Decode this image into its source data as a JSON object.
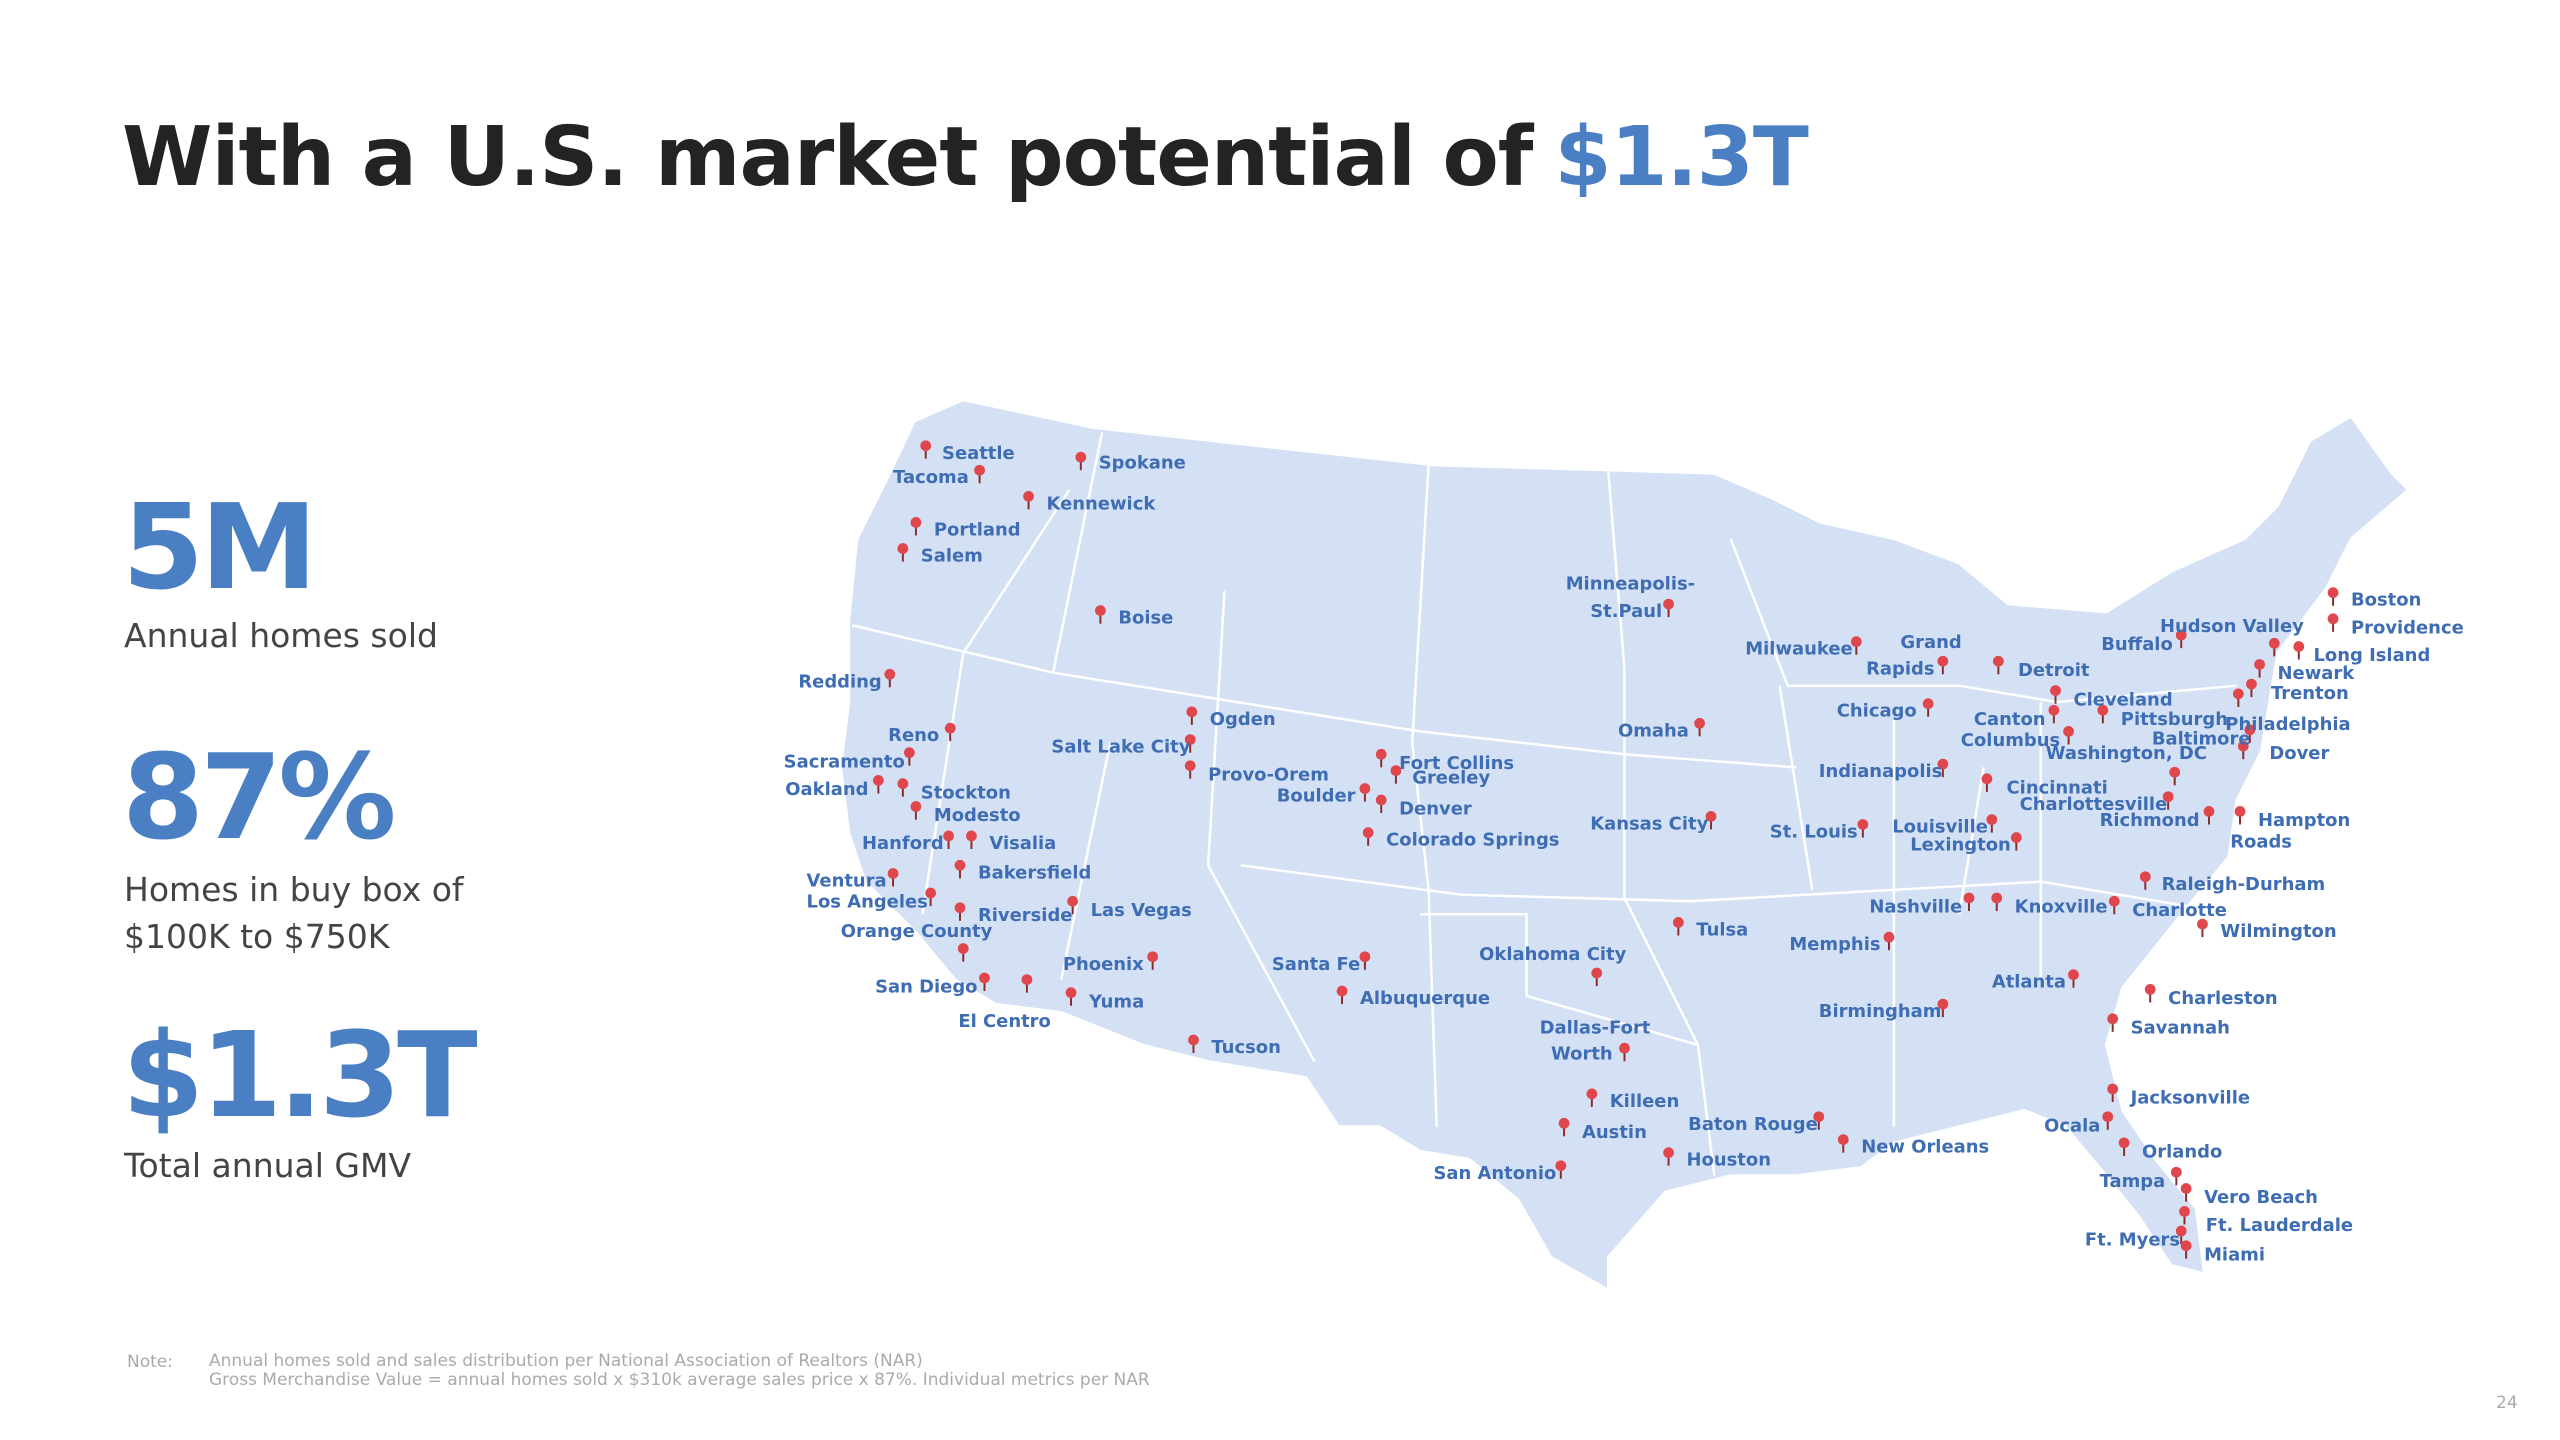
{
  "header": {
    "title": "With a U.S. market potential of",
    "title_highlight": "$1.3T"
  },
  "stats": [
    {
      "value": "5M",
      "label": "Annual homes sold"
    },
    {
      "value": "87%",
      "label": "Homes in buy box of $100K to $750K"
    },
    {
      "value": "$1.3T",
      "label": "Total annual GMV"
    }
  ],
  "map": {
    "cities": [
      "Seattle",
      "Tacoma",
      "Spokane",
      "Kennewick",
      "Portland",
      "Salem",
      "Boise",
      "Redding",
      "Reno",
      "Sacramento",
      "Oakland",
      "Stockton",
      "Modesto",
      "Hanford",
      "Visalia",
      "Bakersfield",
      "Ventura",
      "Los Angeles",
      "Riverside",
      "Orange County",
      "Las Vegas",
      "San Diego",
      "El Centro",
      "Phoenix",
      "Yuma",
      "Tucson",
      "Ogden",
      "Salt Lake City",
      "Provo-Orem",
      "Boulder",
      "Fort Collins",
      "Greeley",
      "Denver",
      "Colorado Springs",
      "Santa Fe",
      "Albuquerque",
      "Oklahoma City",
      "Dallas-Fort",
      "Worth",
      "Killeen",
      "Austin",
      "San Antonio",
      "Houston",
      "Tulsa",
      "Kansas City",
      "Omaha",
      "Minneapolis-",
      "St.Paul",
      "Milwaukee",
      "Grand",
      "Rapids",
      "Detroit",
      "Chicago",
      "Indianapolis",
      "St. Louis",
      "Louisville",
      "Lexington",
      "Canton",
      "Columbus",
      "Cleveland",
      "Pittsburgh",
      "Washington, DC",
      "Cincinnati",
      "Charlottesville",
      "Richmond",
      "Baltimore",
      "Philadelphia",
      "Dover",
      "Hampton",
      "Roads",
      "Buffalo",
      "Hudson Valley",
      "Boston",
      "Providence",
      "Long Island",
      "Newark",
      "Trenton",
      "Nashville",
      "Knoxville",
      "Charlotte",
      "Raleigh-Durham",
      "Wilmington",
      "Memphis",
      "Atlanta",
      "Birmingham",
      "Charleston",
      "Savannah",
      "Baton Rouge",
      "New Orleans",
      "Jacksonville",
      "Ocala",
      "Orlando",
      "Tampa",
      "Vero Beach",
      "Ft. Lauderdale",
      "Ft. Myers",
      "Miami"
    ]
  },
  "note": {
    "label": "Note:",
    "lines": [
      "Annual homes sold and sales distribution per National Association of Realtors (NAR)",
      "Gross Merchandise Value = annual homes sold x $310k average sales price x 87%. Individual metrics per NAR"
    ]
  },
  "page_number": "24"
}
